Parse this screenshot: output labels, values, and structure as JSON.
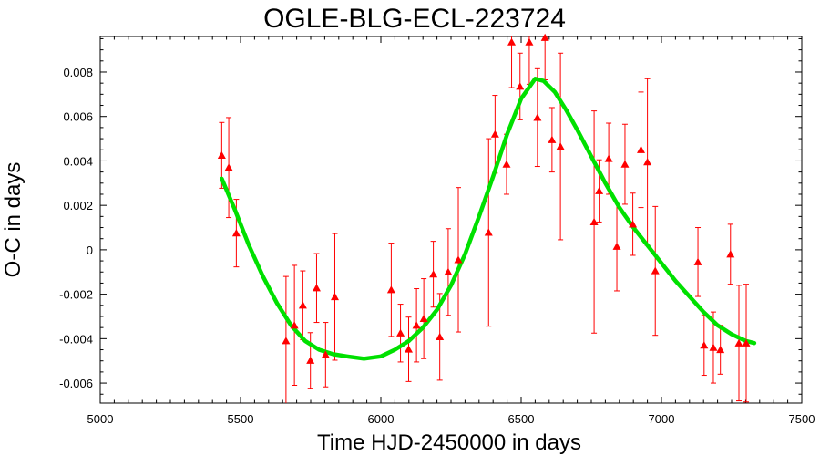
{
  "chart_data": {
    "type": "scatter",
    "title": "OGLE-BLG-ECL-223724",
    "xlabel": "Time HJD-2450000 in days",
    "ylabel": "O-C in days",
    "xlim": [
      5000,
      7500
    ],
    "ylim": [
      -0.0069,
      0.0096
    ],
    "x_ticks": [
      5000,
      5500,
      6000,
      6500,
      7000,
      7500
    ],
    "x_tick_labels": [
      "5000",
      "5500",
      "6000",
      "6500",
      "7000",
      "7500"
    ],
    "y_ticks": [
      -0.006,
      -0.004,
      -0.002,
      0,
      0.002,
      0.004,
      0.006,
      0.008
    ],
    "y_tick_labels": [
      "-0.006",
      "-0.004",
      "-0.002",
      "0",
      "0.002",
      "0.004",
      "0.006",
      "0.008"
    ],
    "grid": false,
    "colors": {
      "points": "#ff0000",
      "fit": "#00e000",
      "axes": "#000000"
    },
    "series": [
      {
        "kind": "points-with-error-bars",
        "marker": "triangle",
        "points": [
          {
            "x": 5433,
            "y": 0.00425,
            "yerr": 0.00148
          },
          {
            "x": 5458,
            "y": 0.0037,
            "yerr": 0.00225
          },
          {
            "x": 5485,
            "y": 0.00075,
            "yerr": 0.00152
          },
          {
            "x": 5662,
            "y": -0.0041,
            "yerr": 0.0029
          },
          {
            "x": 5692,
            "y": -0.0034,
            "yerr": 0.0027
          },
          {
            "x": 5722,
            "y": -0.0025,
            "yerr": 0.00155
          },
          {
            "x": 5749,
            "y": -0.00498,
            "yerr": 0.00125
          },
          {
            "x": 5771,
            "y": -0.00172,
            "yerr": 0.00155
          },
          {
            "x": 5803,
            "y": -0.00472,
            "yerr": 0.00145
          },
          {
            "x": 5836,
            "y": -0.00212,
            "yerr": 0.00285
          },
          {
            "x": 6037,
            "y": -0.0018,
            "yerr": 0.0021
          },
          {
            "x": 6070,
            "y": -0.00375,
            "yerr": 0.0013
          },
          {
            "x": 6099,
            "y": -0.00448,
            "yerr": 0.00145
          },
          {
            "x": 6127,
            "y": -0.0034,
            "yerr": 0.00165
          },
          {
            "x": 6153,
            "y": -0.0031,
            "yerr": 0.0018
          },
          {
            "x": 6187,
            "y": -0.0011,
            "yerr": 0.00148
          },
          {
            "x": 6210,
            "y": -0.00392,
            "yerr": 0.00195
          },
          {
            "x": 6240,
            "y": -0.001,
            "yerr": 0.00195
          },
          {
            "x": 6276,
            "y": -0.00045,
            "yerr": 0.00325
          },
          {
            "x": 6384,
            "y": 0.00078,
            "yerr": 0.00422
          },
          {
            "x": 6407,
            "y": 0.0052,
            "yerr": 0.00175
          },
          {
            "x": 6448,
            "y": 0.00385,
            "yerr": 0.00135
          },
          {
            "x": 6466,
            "y": 0.00935,
            "yerr": 0.00205
          },
          {
            "x": 6496,
            "y": 0.00735,
            "yerr": 0.0015
          },
          {
            "x": 6529,
            "y": 0.00935,
            "yerr": 0.0019
          },
          {
            "x": 6558,
            "y": 0.00595,
            "yerr": 0.0022
          },
          {
            "x": 6585,
            "y": 0.00955,
            "yerr": 0.0019
          },
          {
            "x": 6610,
            "y": 0.00495,
            "yerr": 0.00145
          },
          {
            "x": 6640,
            "y": 0.00465,
            "yerr": 0.0042
          },
          {
            "x": 6760,
            "y": 0.00125,
            "yerr": 0.005
          },
          {
            "x": 6778,
            "y": 0.00265,
            "yerr": 0.0014
          },
          {
            "x": 6812,
            "y": 0.0041,
            "yerr": 0.0016
          },
          {
            "x": 6841,
            "y": 0.00015,
            "yerr": 0.002
          },
          {
            "x": 6870,
            "y": 0.00385,
            "yerr": 0.0018
          },
          {
            "x": 6898,
            "y": 0.00115,
            "yerr": 0.0014
          },
          {
            "x": 6927,
            "y": 0.0045,
            "yerr": 0.0026
          },
          {
            "x": 6950,
            "y": 0.00395,
            "yerr": 0.00375
          },
          {
            "x": 6978,
            "y": -0.00095,
            "yerr": 0.0029
          },
          {
            "x": 7130,
            "y": -0.00055,
            "yerr": 0.00155
          },
          {
            "x": 7152,
            "y": -0.0043,
            "yerr": 0.00135
          },
          {
            "x": 7185,
            "y": -0.0044,
            "yerr": 0.0016
          },
          {
            "x": 7210,
            "y": -0.0045,
            "yerr": 0.0011
          },
          {
            "x": 7246,
            "y": -0.0002,
            "yerr": 0.00135
          },
          {
            "x": 7276,
            "y": -0.0042,
            "yerr": 0.0026
          },
          {
            "x": 7302,
            "y": -0.0042,
            "yerr": 0.00265
          }
        ]
      },
      {
        "kind": "fit-line",
        "points": [
          [
            5433,
            0.0032
          ],
          [
            5480,
            0.0018
          ],
          [
            5530,
            0.0002
          ],
          [
            5580,
            -0.0012
          ],
          [
            5630,
            -0.0024
          ],
          [
            5680,
            -0.0034
          ],
          [
            5730,
            -0.0041
          ],
          [
            5780,
            -0.0045
          ],
          [
            5830,
            -0.0047
          ],
          [
            5880,
            -0.0048
          ],
          [
            5940,
            -0.0049
          ],
          [
            6000,
            -0.0048
          ],
          [
            6050,
            -0.0045
          ],
          [
            6100,
            -0.0041
          ],
          [
            6150,
            -0.0035
          ],
          [
            6200,
            -0.0027
          ],
          [
            6250,
            -0.0016
          ],
          [
            6300,
            -0.0002
          ],
          [
            6350,
            0.0015
          ],
          [
            6400,
            0.0033
          ],
          [
            6450,
            0.0052
          ],
          [
            6500,
            0.0068
          ],
          [
            6550,
            0.0077
          ],
          [
            6580,
            0.0076
          ],
          [
            6620,
            0.0071
          ],
          [
            6660,
            0.0063
          ],
          [
            6700,
            0.0054
          ],
          [
            6750,
            0.0042
          ],
          [
            6800,
            0.003
          ],
          [
            6850,
            0.0019
          ],
          [
            6900,
            0.001
          ],
          [
            6950,
            0.0002
          ],
          [
            7000,
            -0.0006
          ],
          [
            7050,
            -0.0014
          ],
          [
            7100,
            -0.0021
          ],
          [
            7150,
            -0.0028
          ],
          [
            7200,
            -0.0034
          ],
          [
            7250,
            -0.0038
          ],
          [
            7300,
            -0.0041
          ],
          [
            7331,
            -0.0042
          ]
        ]
      }
    ]
  }
}
